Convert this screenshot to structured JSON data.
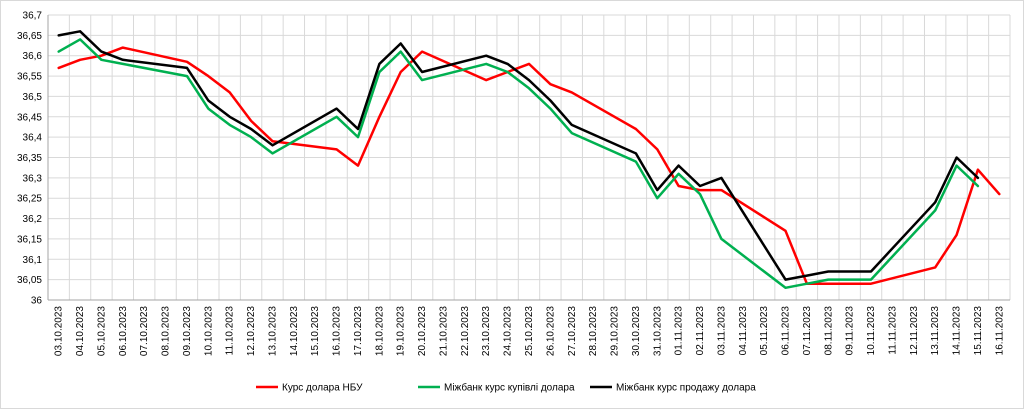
{
  "chart_data": {
    "type": "line",
    "categories": [
      "03.10.2023",
      "04.10.2023",
      "05.10.2023",
      "06.10.2023",
      "07.10.2023",
      "08.10.2023",
      "09.10.2023",
      "10.10.2023",
      "11.10.2023",
      "12.10.2023",
      "13.10.2023",
      "14.10.2023",
      "15.10.2023",
      "16.10.2023",
      "17.10.2023",
      "18.10.2023",
      "19.10.2023",
      "20.10.2023",
      "21.10.2023",
      "22.10.2023",
      "23.10.2023",
      "24.10.2023",
      "25.10.2023",
      "26.10.2023",
      "27.10.2023",
      "28.10.2023",
      "29.10.2023",
      "30.10.2023",
      "31.10.2023",
      "01.11.2023",
      "02.11.2023",
      "03.11.2023",
      "04.11.2023",
      "05.11.2023",
      "06.11.2023",
      "07.11.2023",
      "08.11.2023",
      "09.11.2023",
      "10.11.2023",
      "11.11.2023",
      "12.11.2023",
      "13.11.2023",
      "14.11.2023",
      "15.11.2023",
      "16.11.2023"
    ],
    "y_ticks": [
      "36",
      "36,05",
      "36,1",
      "36,15",
      "36,2",
      "36,25",
      "36,3",
      "36,35",
      "36,4",
      "36,45",
      "36,5",
      "36,55",
      "36,6",
      "36,65",
      "36,7"
    ],
    "ylim": [
      36.0,
      36.7
    ],
    "grid": true,
    "legend_position": "bottom",
    "series": [
      {
        "name": "Курс долара НБУ",
        "color": "#ff0000",
        "values": [
          36.57,
          36.59,
          36.6,
          36.62,
          null,
          null,
          36.585,
          36.55,
          36.51,
          36.44,
          36.39,
          null,
          null,
          36.37,
          36.33,
          36.45,
          36.56,
          36.61,
          null,
          null,
          36.54,
          36.56,
          36.58,
          36.53,
          36.51,
          null,
          null,
          36.42,
          36.37,
          36.28,
          36.27,
          36.27,
          null,
          null,
          36.17,
          36.04,
          36.04,
          36.04,
          36.04,
          null,
          null,
          36.08,
          36.16,
          36.32,
          36.26
        ]
      },
      {
        "name": "Міжбанк курс купівлі долара",
        "color": "#00b050",
        "values": [
          36.61,
          36.64,
          36.59,
          36.58,
          null,
          null,
          36.55,
          36.47,
          36.43,
          36.4,
          36.36,
          null,
          null,
          36.45,
          36.4,
          36.56,
          36.61,
          36.54,
          null,
          null,
          36.58,
          36.56,
          36.52,
          36.47,
          36.41,
          null,
          null,
          36.34,
          36.25,
          36.31,
          36.26,
          36.15,
          null,
          null,
          36.03,
          36.04,
          36.05,
          36.05,
          36.05,
          null,
          null,
          36.22,
          36.33,
          36.28,
          null
        ]
      },
      {
        "name": "Міжбанк курс продажу долара",
        "color": "#000000",
        "values": [
          36.65,
          36.66,
          36.61,
          36.59,
          null,
          null,
          36.57,
          36.49,
          36.45,
          36.42,
          36.38,
          null,
          null,
          36.47,
          36.42,
          36.58,
          36.63,
          36.56,
          null,
          null,
          36.6,
          36.58,
          36.54,
          36.49,
          36.43,
          null,
          null,
          36.36,
          36.27,
          36.33,
          36.28,
          36.3,
          null,
          null,
          36.05,
          36.06,
          36.07,
          36.07,
          36.07,
          null,
          null,
          36.24,
          36.35,
          36.3,
          null
        ]
      }
    ]
  }
}
